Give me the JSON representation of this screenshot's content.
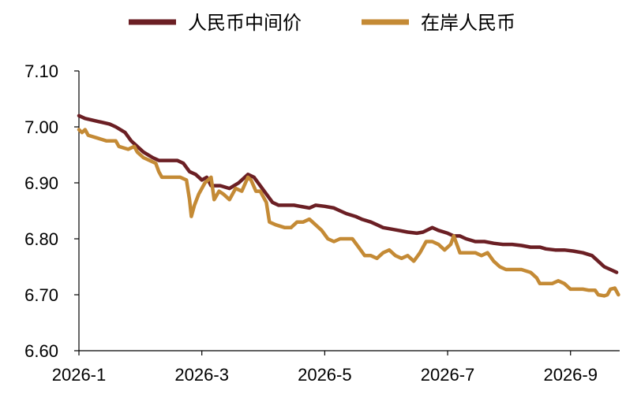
{
  "chart_data": {
    "type": "line",
    "title": "",
    "xlabel": "",
    "ylabel": "",
    "ylim": [
      6.6,
      7.1
    ],
    "yticks": [
      "7.10",
      "7.00",
      "6.90",
      "6.80",
      "6.70",
      "6.60"
    ],
    "xticks": [
      "2026-1",
      "2026-3",
      "2026-5",
      "2026-7",
      "2026-9"
    ],
    "xlim": [
      0,
      8.8
    ],
    "grid": false,
    "legend": "top-center",
    "series": [
      {
        "name": "人民币中间价",
        "color": "#6b1f24",
        "points": [
          [
            0,
            7.02
          ],
          [
            0.1,
            7.015
          ],
          [
            0.3,
            7.01
          ],
          [
            0.5,
            7.005
          ],
          [
            0.6,
            7.0
          ],
          [
            0.75,
            6.99
          ],
          [
            0.85,
            6.975
          ],
          [
            0.95,
            6.965
          ],
          [
            1.05,
            6.955
          ],
          [
            1.2,
            6.945
          ],
          [
            1.3,
            6.94
          ],
          [
            1.4,
            6.94
          ],
          [
            1.6,
            6.94
          ],
          [
            1.7,
            6.935
          ],
          [
            1.8,
            6.92
          ],
          [
            1.9,
            6.915
          ],
          [
            2.0,
            6.905
          ],
          [
            2.08,
            6.91
          ],
          [
            2.15,
            6.895
          ],
          [
            2.3,
            6.895
          ],
          [
            2.45,
            6.89
          ],
          [
            2.6,
            6.9
          ],
          [
            2.75,
            6.915
          ],
          [
            2.85,
            6.91
          ],
          [
            2.95,
            6.895
          ],
          [
            3.05,
            6.88
          ],
          [
            3.15,
            6.865
          ],
          [
            3.25,
            6.86
          ],
          [
            3.4,
            6.86
          ],
          [
            3.5,
            6.86
          ],
          [
            3.6,
            6.858
          ],
          [
            3.75,
            6.855
          ],
          [
            3.85,
            6.86
          ],
          [
            4.0,
            6.858
          ],
          [
            4.15,
            6.855
          ],
          [
            4.25,
            6.85
          ],
          [
            4.35,
            6.845
          ],
          [
            4.5,
            6.84
          ],
          [
            4.6,
            6.835
          ],
          [
            4.75,
            6.83
          ],
          [
            4.85,
            6.825
          ],
          [
            4.95,
            6.82
          ],
          [
            5.05,
            6.818
          ],
          [
            5.2,
            6.815
          ],
          [
            5.35,
            6.812
          ],
          [
            5.5,
            6.81
          ],
          [
            5.6,
            6.812
          ],
          [
            5.75,
            6.82
          ],
          [
            5.85,
            6.815
          ],
          [
            6.0,
            6.81
          ],
          [
            6.1,
            6.805
          ],
          [
            6.2,
            6.805
          ],
          [
            6.3,
            6.8
          ],
          [
            6.45,
            6.795
          ],
          [
            6.6,
            6.795
          ],
          [
            6.75,
            6.792
          ],
          [
            6.9,
            6.79
          ],
          [
            7.05,
            6.79
          ],
          [
            7.2,
            6.788
          ],
          [
            7.35,
            6.785
          ],
          [
            7.5,
            6.785
          ],
          [
            7.6,
            6.782
          ],
          [
            7.75,
            6.78
          ],
          [
            7.9,
            6.78
          ],
          [
            8.05,
            6.778
          ],
          [
            8.2,
            6.775
          ],
          [
            8.35,
            6.77
          ],
          [
            8.45,
            6.76
          ],
          [
            8.55,
            6.75
          ],
          [
            8.65,
            6.745
          ],
          [
            8.75,
            6.74
          ]
        ]
      },
      {
        "name": "在岸人民币",
        "color": "#c48a35",
        "points": [
          [
            0,
            6.995
          ],
          [
            0.05,
            6.99
          ],
          [
            0.1,
            6.995
          ],
          [
            0.15,
            6.985
          ],
          [
            0.3,
            6.98
          ],
          [
            0.45,
            6.975
          ],
          [
            0.6,
            6.975
          ],
          [
            0.65,
            6.965
          ],
          [
            0.8,
            6.96
          ],
          [
            0.9,
            6.965
          ],
          [
            0.95,
            6.955
          ],
          [
            1.05,
            6.945
          ],
          [
            1.15,
            6.94
          ],
          [
            1.25,
            6.935
          ],
          [
            1.3,
            6.92
          ],
          [
            1.35,
            6.91
          ],
          [
            1.5,
            6.91
          ],
          [
            1.65,
            6.91
          ],
          [
            1.75,
            6.905
          ],
          [
            1.8,
            6.87
          ],
          [
            1.83,
            6.84
          ],
          [
            1.88,
            6.86
          ],
          [
            1.95,
            6.88
          ],
          [
            2.05,
            6.9
          ],
          [
            2.15,
            6.91
          ],
          [
            2.2,
            6.87
          ],
          [
            2.28,
            6.885
          ],
          [
            2.35,
            6.88
          ],
          [
            2.45,
            6.87
          ],
          [
            2.55,
            6.89
          ],
          [
            2.65,
            6.885
          ],
          [
            2.75,
            6.91
          ],
          [
            2.8,
            6.905
          ],
          [
            2.88,
            6.885
          ],
          [
            2.95,
            6.885
          ],
          [
            3.0,
            6.875
          ],
          [
            3.05,
            6.865
          ],
          [
            3.1,
            6.83
          ],
          [
            3.2,
            6.825
          ],
          [
            3.35,
            6.82
          ],
          [
            3.45,
            6.82
          ],
          [
            3.55,
            6.83
          ],
          [
            3.65,
            6.83
          ],
          [
            3.75,
            6.835
          ],
          [
            3.85,
            6.825
          ],
          [
            3.95,
            6.815
          ],
          [
            4.05,
            6.8
          ],
          [
            4.15,
            6.795
          ],
          [
            4.25,
            6.8
          ],
          [
            4.35,
            6.8
          ],
          [
            4.45,
            6.8
          ],
          [
            4.55,
            6.785
          ],
          [
            4.65,
            6.77
          ],
          [
            4.75,
            6.77
          ],
          [
            4.85,
            6.765
          ],
          [
            4.95,
            6.775
          ],
          [
            5.05,
            6.78
          ],
          [
            5.15,
            6.77
          ],
          [
            5.25,
            6.765
          ],
          [
            5.35,
            6.77
          ],
          [
            5.45,
            6.76
          ],
          [
            5.55,
            6.775
          ],
          [
            5.65,
            6.795
          ],
          [
            5.75,
            6.795
          ],
          [
            5.85,
            6.79
          ],
          [
            5.95,
            6.78
          ],
          [
            6.05,
            6.79
          ],
          [
            6.1,
            6.805
          ],
          [
            6.2,
            6.775
          ],
          [
            6.3,
            6.775
          ],
          [
            6.45,
            6.775
          ],
          [
            6.55,
            6.77
          ],
          [
            6.65,
            6.775
          ],
          [
            6.75,
            6.76
          ],
          [
            6.85,
            6.75
          ],
          [
            6.95,
            6.745
          ],
          [
            7.05,
            6.745
          ],
          [
            7.2,
            6.745
          ],
          [
            7.35,
            6.74
          ],
          [
            7.45,
            6.73
          ],
          [
            7.5,
            6.72
          ],
          [
            7.6,
            6.72
          ],
          [
            7.7,
            6.72
          ],
          [
            7.8,
            6.725
          ],
          [
            7.9,
            6.72
          ],
          [
            8.0,
            6.71
          ],
          [
            8.2,
            6.71
          ],
          [
            8.3,
            6.708
          ],
          [
            8.4,
            6.708
          ],
          [
            8.45,
            6.7
          ],
          [
            8.55,
            6.698
          ],
          [
            8.6,
            6.7
          ],
          [
            8.65,
            6.71
          ],
          [
            8.72,
            6.712
          ],
          [
            8.78,
            6.7
          ]
        ]
      }
    ]
  }
}
